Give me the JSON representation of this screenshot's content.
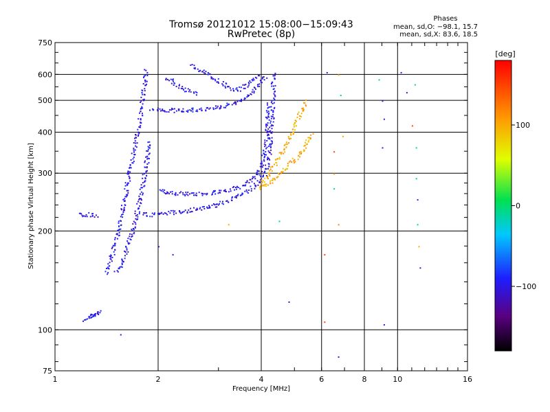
{
  "chart_data": {
    "type": "scatter",
    "title": "Tromsø 20121012 15:08:00−15:09:43",
    "subtitle": "RwPretec (8p)",
    "xlabel": "Frequency [MHz]",
    "ylabel": "Stationary phase Virtual Height [km]",
    "x_scale": "log",
    "y_scale": "log",
    "xlim": [
      1,
      16
    ],
    "ylim": [
      75,
      750
    ],
    "x_ticks": [
      1,
      2,
      4,
      6,
      8,
      10,
      16
    ],
    "x_tick_labels": [
      "1",
      "2",
      "4",
      "6",
      "8",
      "10",
      "16"
    ],
    "y_ticks": [
      75,
      100,
      200,
      300,
      400,
      500,
      600,
      750
    ],
    "y_tick_labels": [
      "75",
      "100",
      "200",
      "300",
      "400",
      "500",
      "600",
      "750"
    ],
    "grid": true,
    "stats": {
      "heading": "Phases",
      "o_line": "mean, sd,O: −98.1, 15.7",
      "x_line": "mean, sd,X:  83.6, 18.5"
    },
    "colorbar": {
      "unit_label": "[deg]",
      "range": [
        -180,
        180
      ],
      "ticks": [
        -100,
        0,
        100
      ],
      "tick_labels": [
        "−100",
        "0",
        "100"
      ]
    },
    "traces": [
      {
        "phase": -100,
        "points": [
          [
            1.22,
            108
          ],
          [
            1.25,
            110
          ],
          [
            1.28,
            111
          ],
          [
            1.3,
            111
          ],
          [
            1.33,
            113
          ],
          [
            1.35,
            114
          ]
        ]
      },
      {
        "phase": -100,
        "points": [
          [
            1.17,
            225
          ],
          [
            1.22,
            225
          ],
          [
            1.28,
            225
          ],
          [
            1.33,
            224
          ]
        ]
      },
      {
        "phase": -100,
        "points": [
          [
            1.4,
            150
          ],
          [
            1.45,
            165
          ],
          [
            1.5,
            185
          ],
          [
            1.55,
            220
          ],
          [
            1.6,
            260
          ],
          [
            1.65,
            310
          ],
          [
            1.7,
            360
          ],
          [
            1.75,
            420
          ],
          [
            1.78,
            470
          ],
          [
            1.8,
            520
          ],
          [
            1.82,
            570
          ],
          [
            1.84,
            620
          ]
        ]
      },
      {
        "phase": -100,
        "points": [
          [
            1.5,
            150
          ],
          [
            1.55,
            158
          ],
          [
            1.6,
            170
          ],
          [
            1.65,
            190
          ],
          [
            1.7,
            210
          ],
          [
            1.75,
            240
          ],
          [
            1.8,
            280
          ],
          [
            1.85,
            330
          ],
          [
            1.88,
            380
          ]
        ]
      },
      {
        "phase": -100,
        "points": [
          [
            1.8,
            225
          ],
          [
            2.0,
            226
          ],
          [
            2.3,
            230
          ],
          [
            2.6,
            234
          ],
          [
            3.0,
            242
          ],
          [
            3.3,
            252
          ],
          [
            3.6,
            265
          ],
          [
            3.9,
            280
          ],
          [
            4.1,
            300
          ],
          [
            4.2,
            340
          ],
          [
            4.25,
            400
          ],
          [
            4.3,
            470
          ],
          [
            4.32,
            540
          ],
          [
            4.33,
            610
          ]
        ]
      },
      {
        "phase": -100,
        "points": [
          [
            2.0,
            265
          ],
          [
            2.4,
            260
          ],
          [
            2.8,
            262
          ],
          [
            3.2,
            268
          ],
          [
            3.5,
            275
          ],
          [
            3.8,
            290
          ],
          [
            4.0,
            315
          ],
          [
            4.1,
            360
          ],
          [
            4.15,
            420
          ],
          [
            4.2,
            490
          ]
        ]
      },
      {
        "phase": -100,
        "points": [
          [
            1.9,
            470
          ],
          [
            2.2,
            468
          ],
          [
            2.6,
            470
          ],
          [
            3.0,
            480
          ],
          [
            3.3,
            490
          ],
          [
            3.6,
            510
          ],
          [
            3.8,
            540
          ],
          [
            4.0,
            570
          ],
          [
            4.1,
            600
          ]
        ]
      },
      {
        "phase": -100,
        "points": [
          [
            2.5,
            640
          ],
          [
            2.7,
            615
          ],
          [
            2.9,
            585
          ],
          [
            3.1,
            560
          ],
          [
            3.3,
            540
          ],
          [
            3.5,
            545
          ],
          [
            3.7,
            570
          ],
          [
            3.9,
            600
          ]
        ]
      },
      {
        "phase": -100,
        "points": [
          [
            2.1,
            590
          ],
          [
            2.25,
            560
          ],
          [
            2.4,
            540
          ],
          [
            2.6,
            525
          ]
        ]
      },
      {
        "phase": 100,
        "points": [
          [
            4.0,
            280
          ],
          [
            4.2,
            300
          ],
          [
            4.4,
            325
          ],
          [
            4.6,
            350
          ],
          [
            4.8,
            380
          ],
          [
            5.0,
            420
          ],
          [
            5.2,
            460
          ],
          [
            5.4,
            500
          ]
        ]
      },
      {
        "phase": 100,
        "points": [
          [
            3.9,
            270
          ],
          [
            4.3,
            285
          ],
          [
            4.7,
            310
          ],
          [
            5.1,
            340
          ],
          [
            5.4,
            370
          ],
          [
            5.6,
            400
          ]
        ]
      }
    ],
    "scatter_points": [
      {
        "x": 6.2,
        "y": 610,
        "phase": -100
      },
      {
        "x": 6.7,
        "y": 600,
        "phase": 100
      },
      {
        "x": 6.8,
        "y": 520,
        "phase": 0
      },
      {
        "x": 8.8,
        "y": 580,
        "phase": 0
      },
      {
        "x": 9.0,
        "y": 500,
        "phase": -100
      },
      {
        "x": 9.1,
        "y": 440,
        "phase": -100
      },
      {
        "x": 9.0,
        "y": 360,
        "phase": -100
      },
      {
        "x": 10.2,
        "y": 610,
        "phase": -100
      },
      {
        "x": 10.6,
        "y": 530,
        "phase": -100
      },
      {
        "x": 11.0,
        "y": 420,
        "phase": 150
      },
      {
        "x": 11.2,
        "y": 560,
        "phase": 0
      },
      {
        "x": 11.3,
        "y": 360,
        "phase": 0
      },
      {
        "x": 11.3,
        "y": 290,
        "phase": 0
      },
      {
        "x": 11.4,
        "y": 250,
        "phase": -100
      },
      {
        "x": 11.4,
        "y": 210,
        "phase": 0
      },
      {
        "x": 11.5,
        "y": 180,
        "phase": 100
      },
      {
        "x": 11.6,
        "y": 155,
        "phase": -100
      },
      {
        "x": 6.1,
        "y": 170,
        "phase": 150
      },
      {
        "x": 6.1,
        "y": 106,
        "phase": 150
      },
      {
        "x": 6.7,
        "y": 83,
        "phase": -100
      },
      {
        "x": 9.1,
        "y": 104,
        "phase": -100
      },
      {
        "x": 4.8,
        "y": 122,
        "phase": -100
      },
      {
        "x": 1.55,
        "y": 97,
        "phase": -100
      },
      {
        "x": 6.5,
        "y": 300,
        "phase": 120
      },
      {
        "x": 6.7,
        "y": 210,
        "phase": 120
      },
      {
        "x": 6.5,
        "y": 270,
        "phase": 0
      },
      {
        "x": 6.9,
        "y": 390,
        "phase": 100
      },
      {
        "x": 6.5,
        "y": 350,
        "phase": 150
      },
      {
        "x": 2.0,
        "y": 180,
        "phase": -100
      },
      {
        "x": 2.2,
        "y": 170,
        "phase": -100
      },
      {
        "x": 3.2,
        "y": 210,
        "phase": 100
      },
      {
        "x": 4.5,
        "y": 215,
        "phase": 0
      }
    ]
  }
}
